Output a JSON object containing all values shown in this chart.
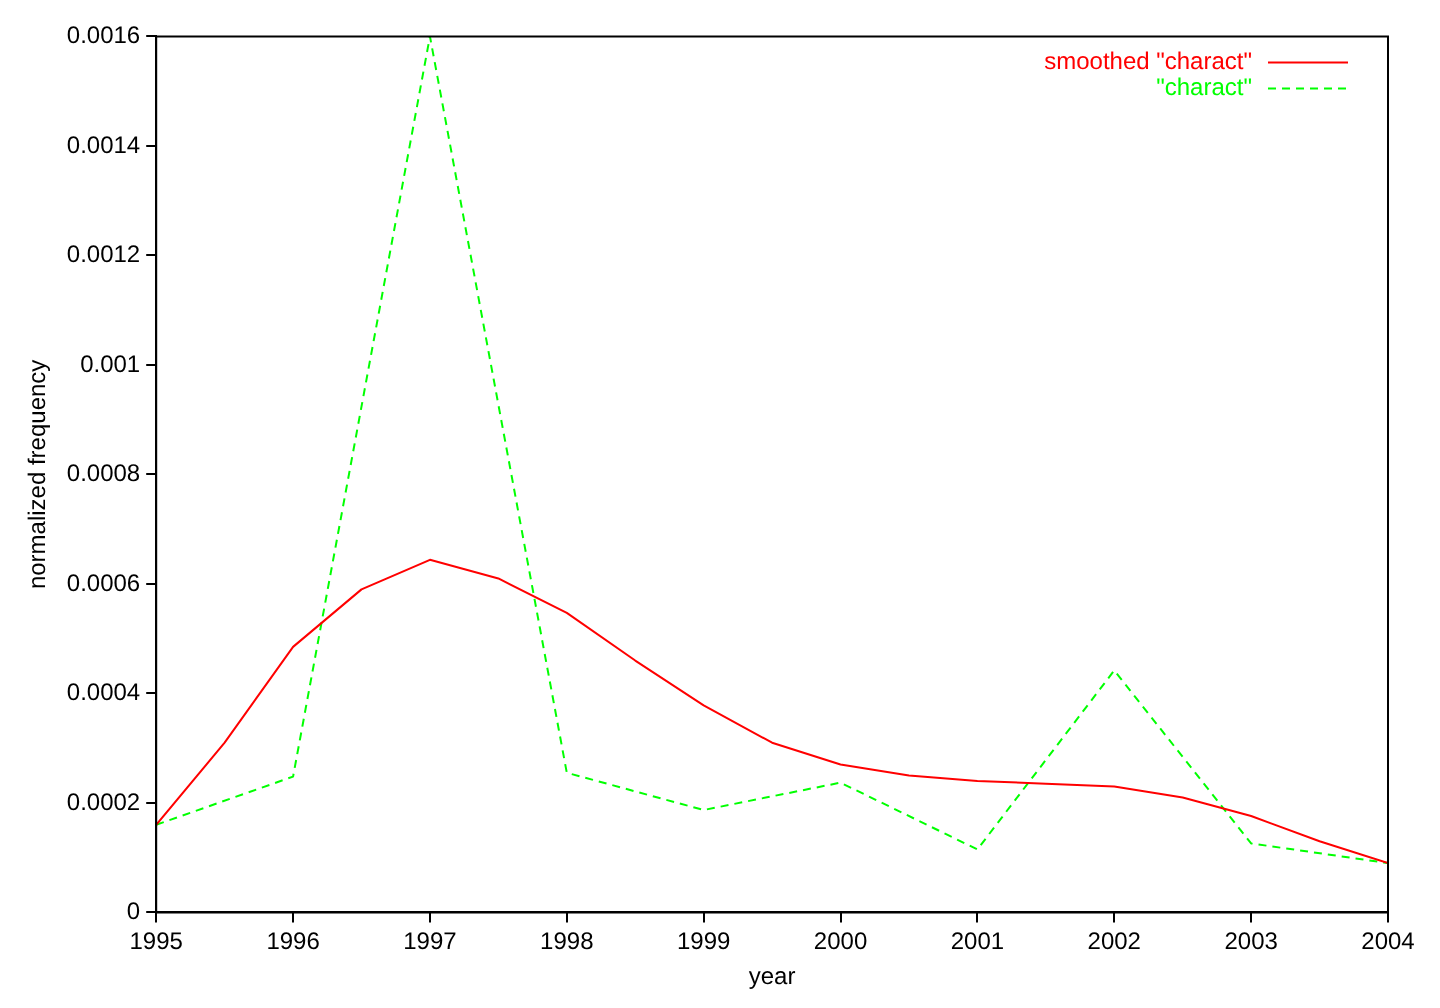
{
  "chart_data": {
    "type": "line",
    "xlabel": "year",
    "ylabel": "normalized frequency",
    "x": [
      1995,
      1996,
      1997,
      1998,
      1999,
      2000,
      2001,
      2002,
      2003,
      2004
    ],
    "series": [
      {
        "name": "smoothed \"charact\"",
        "color": "#ff0000",
        "line_style": "solid",
        "x": [
          1995,
          1995.5,
          1996,
          1996.5,
          1997,
          1997.5,
          1998,
          1998.5,
          1999,
          1999.5,
          2000,
          2000.5,
          2001,
          2001.5,
          2002,
          2002.5,
          2003,
          2003.5,
          2004
        ],
        "values": [
          0.00016,
          0.00031,
          0.000485,
          0.00059,
          0.000644,
          0.00061,
          0.000547,
          0.00046,
          0.000378,
          0.00031,
          0.00027,
          0.00025,
          0.00024,
          0.000235,
          0.00023,
          0.00021,
          0.000176,
          0.00013,
          9e-05
        ]
      },
      {
        "name": "\"charact\"",
        "color": "#00ff00",
        "line_style": "dashed",
        "values": [
          0.00016,
          0.000248,
          0.0016,
          0.000255,
          0.000187,
          0.000237,
          0.000115,
          0.000442,
          0.000126,
          9e-05
        ]
      }
    ],
    "xlim": [
      1995,
      2004
    ],
    "xticks": [
      1995,
      1996,
      1997,
      1998,
      1999,
      2000,
      2001,
      2002,
      2003,
      2004
    ],
    "ylim": [
      0,
      0.0016
    ],
    "yticks": [
      0,
      0.0002,
      0.0004,
      0.0006,
      0.0008,
      0.001,
      0.0012,
      0.0014,
      0.0016
    ],
    "grid": false,
    "legend": "top right",
    "marker": "none"
  }
}
